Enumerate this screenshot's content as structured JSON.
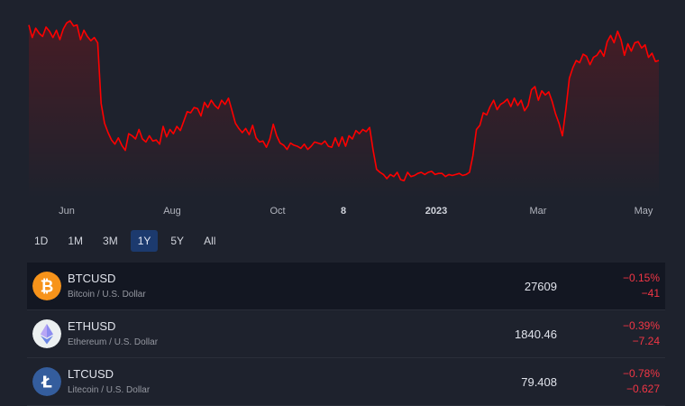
{
  "chart_data": {
    "type": "area",
    "series": [
      {
        "values": [
          31000,
          29800,
          30700,
          30200,
          29900,
          30800,
          30400,
          29800,
          30500,
          29600,
          30600,
          31200,
          31400,
          30900,
          31000,
          29600,
          30500,
          29900,
          29500,
          29800,
          29300,
          23500,
          21600,
          20700,
          20000,
          19600,
          20200,
          19500,
          19000,
          20600,
          20400,
          20100,
          21000,
          20100,
          19800,
          20400,
          19900,
          20000,
          19600,
          21300,
          20300,
          21000,
          20600,
          21300,
          20900,
          21800,
          22700,
          22600,
          23100,
          23000,
          22300,
          23600,
          23100,
          23800,
          23300,
          23000,
          23800,
          23400,
          24000,
          22800,
          21600,
          21100,
          20700,
          21100,
          20500,
          21400,
          20200,
          19800,
          19900,
          19300,
          20100,
          21500,
          20400,
          19700,
          19500,
          19100,
          19700,
          19500,
          19400,
          19200,
          19600,
          19100,
          19400,
          19800,
          19700,
          19600,
          19900,
          19400,
          19300,
          20200,
          19400,
          20300,
          19400,
          20400,
          20100,
          20900,
          20600,
          21000,
          20800,
          21200,
          19000,
          17200,
          16900,
          16700,
          16300,
          16700,
          16500,
          16900,
          16200,
          16100,
          16900,
          16500,
          16600,
          16800,
          16900,
          16700,
          16900,
          17000,
          16700,
          16800,
          16800,
          16500,
          16700,
          16600,
          16700,
          16800,
          16600,
          16700,
          16900,
          18500,
          21000,
          21400,
          22600,
          22400,
          23200,
          23800,
          22900,
          23400,
          23600,
          23900,
          23200,
          24000,
          23300,
          23800,
          22800,
          23300,
          24800,
          25100,
          23800,
          24700,
          24300,
          24600,
          23700,
          22500,
          21600,
          20400,
          23000,
          25900,
          26900,
          27600,
          27400,
          28200,
          28000,
          27200,
          27900,
          28100,
          28600,
          28000,
          29400,
          30000,
          29300,
          30400,
          29600,
          28100,
          29200,
          28500,
          29300,
          29400,
          28800,
          29100,
          27900,
          28300,
          27500,
          27609
        ]
      }
    ],
    "x_tick_labels": [
      "Jun",
      "Aug",
      "Oct",
      "8",
      "2023",
      "Mar",
      "May"
    ],
    "ylim": [
      14400,
      32700
    ],
    "line_color": "#ff0000",
    "grid": false
  },
  "time_range": {
    "options": [
      "1D",
      "1M",
      "3M",
      "1Y",
      "5Y",
      "All"
    ],
    "selected": "1Y"
  },
  "tickers": [
    {
      "symbol": "BTCUSD",
      "description": "Bitcoin / U.S. Dollar",
      "price": "27609",
      "change_pct": "−0.15%",
      "change": "−41",
      "logo": "bitcoin-icon",
      "logo_color": "#f7931a",
      "selected": true
    },
    {
      "symbol": "ETHUSD",
      "description": "Ethereum / U.S. Dollar",
      "price": "1840.46",
      "change_pct": "−0.39%",
      "change": "−7.24",
      "logo": "ethereum-icon",
      "logo_color": "#ecf0f1",
      "selected": false
    },
    {
      "symbol": "LTCUSD",
      "description": "Litecoin / U.S. Dollar",
      "price": "79.408",
      "change_pct": "−0.78%",
      "change": "−0.627",
      "logo": "litecoin-icon",
      "logo_color": "#345d9d",
      "selected": false
    }
  ],
  "colors": {
    "background": "#1e222d",
    "negative": "#f23645",
    "active_tab": "#1c3a6e"
  }
}
